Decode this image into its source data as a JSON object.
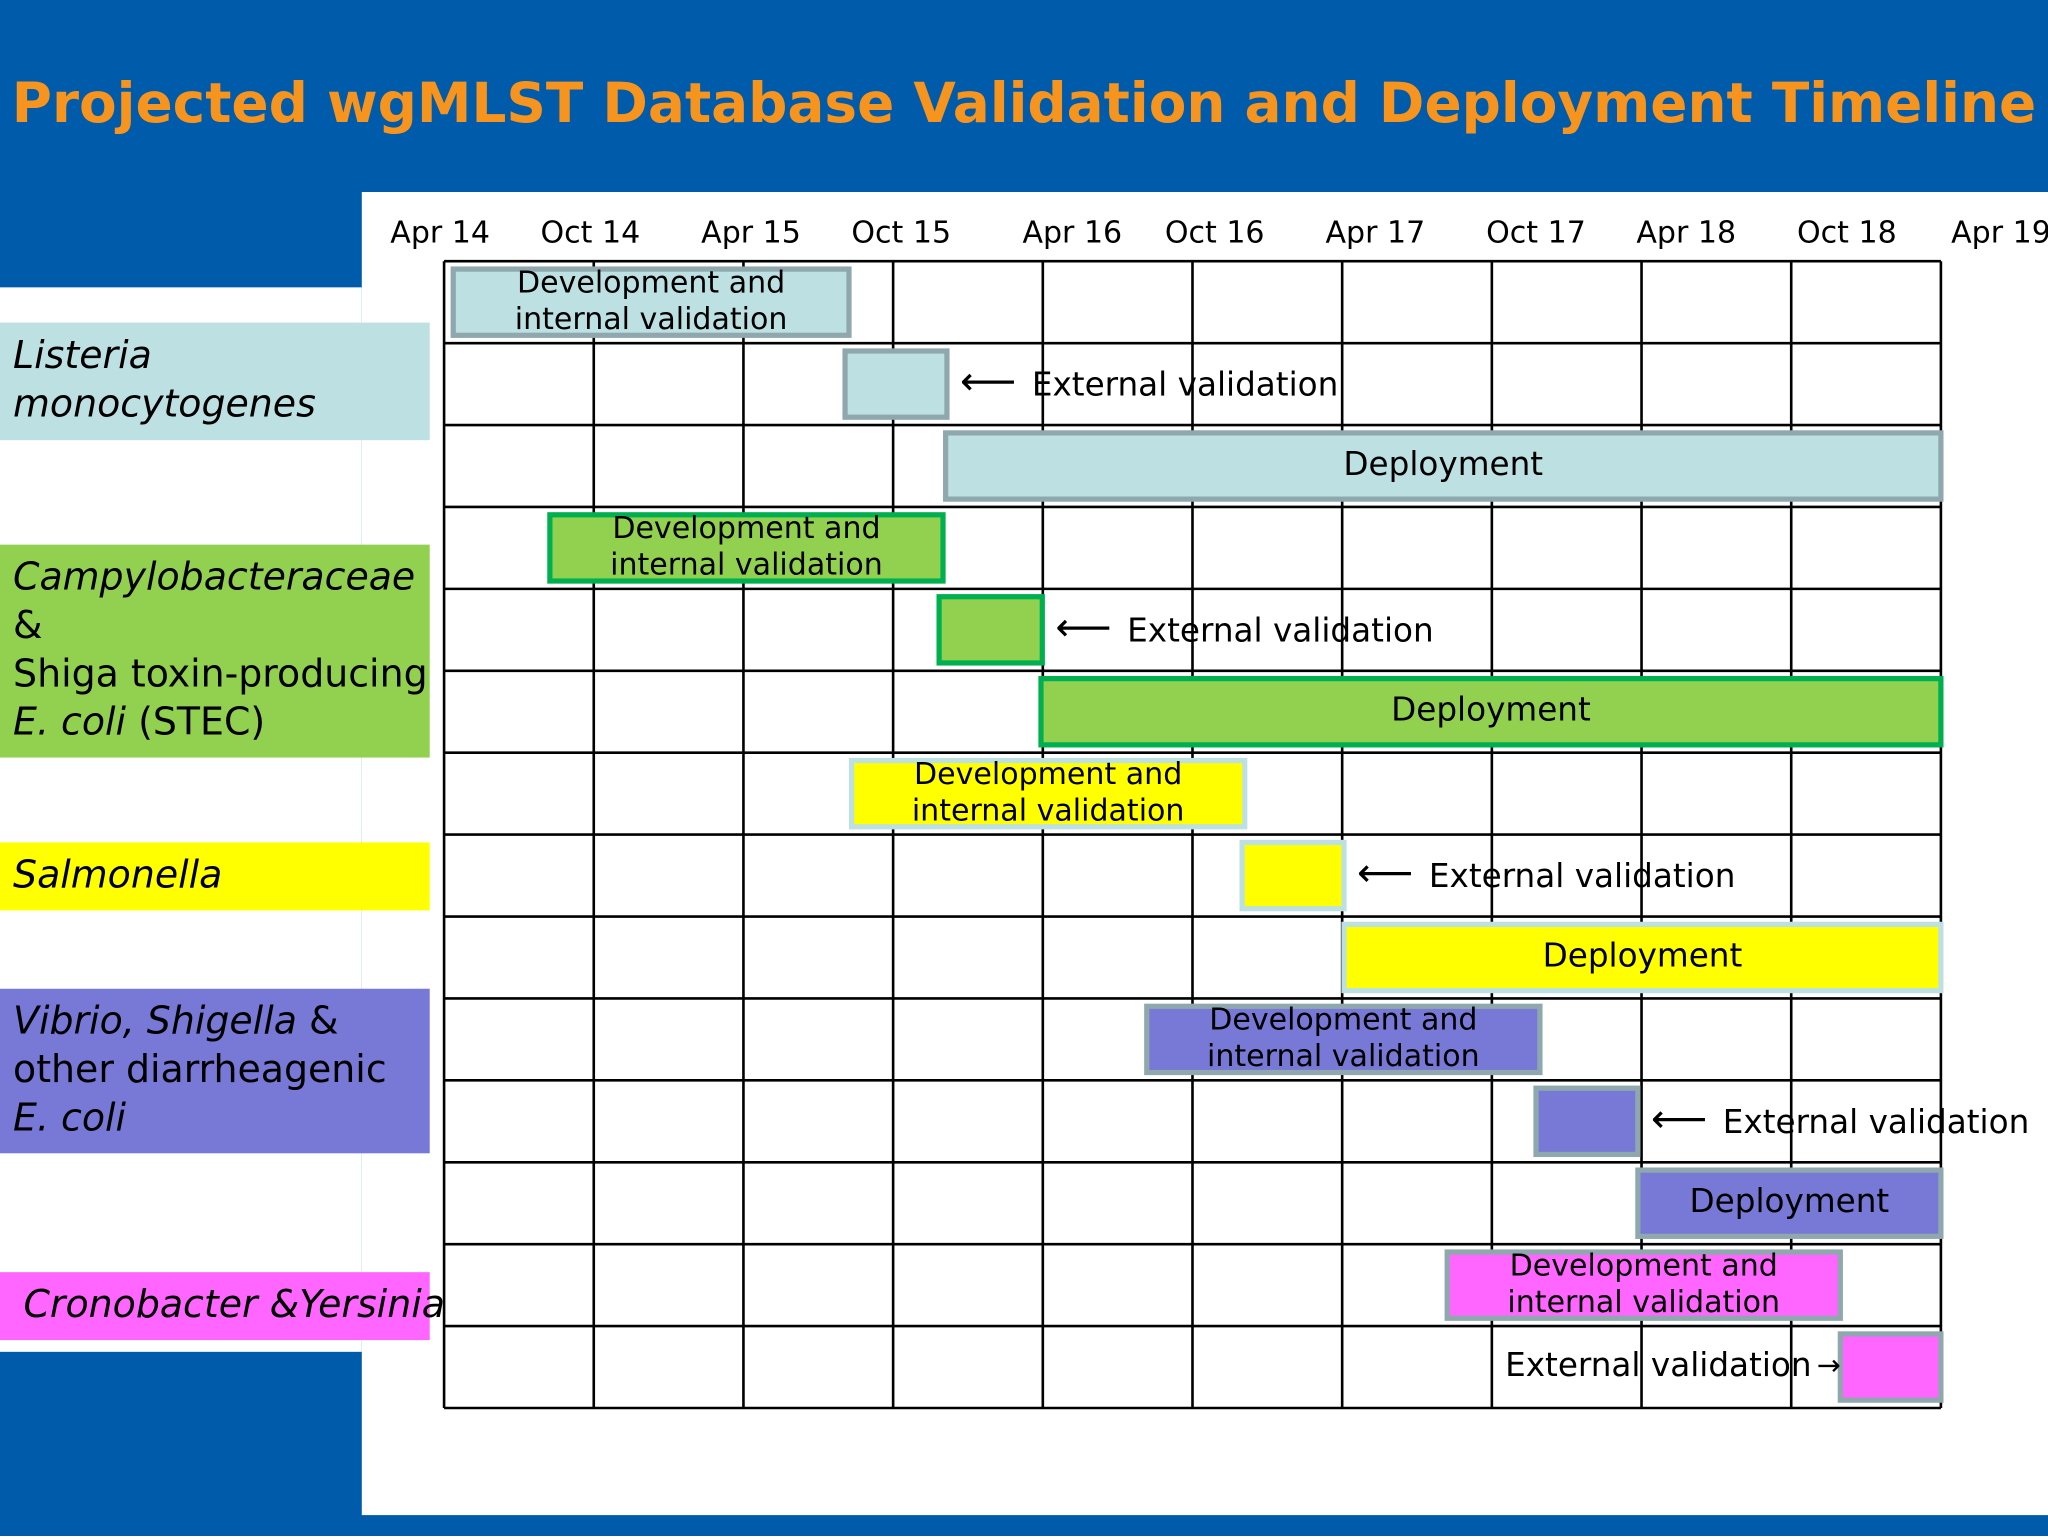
{
  "title": "Projected wgMLST Database Validation and Deployment Timeline",
  "timeline": {
    "columns": [
      "Apr 14",
      "Oct 14",
      "Apr 15",
      "Oct 15",
      "Apr 16",
      "Oct 16",
      "Apr 17",
      "Oct 17",
      "Apr 18",
      "Oct 18",
      "Apr 19"
    ],
    "groups": [
      {
        "label_lines": [
          [
            {
              "text": "Listeria",
              "italic": true
            }
          ],
          [
            {
              "text": "monocytogenes",
              "italic": true
            }
          ]
        ],
        "color": "#bde0e3",
        "bars": {
          "development": [
            "Development and",
            "internal validation"
          ],
          "external": "External validation",
          "deployment": "Deployment"
        }
      },
      {
        "label_lines": [
          [
            {
              "text": "Campylobacteraceae",
              "italic": true
            }
          ],
          [
            {
              "text": "&",
              "italic": false
            }
          ],
          [
            {
              "text": "Shiga toxin-producing",
              "italic": false
            }
          ],
          [
            {
              "text": "E. coli",
              "italic": true
            },
            {
              "text": " (STEC)",
              "italic": false
            }
          ]
        ],
        "color": "#92d050",
        "bars": {
          "development": [
            "Development and",
            "internal validation"
          ],
          "external": "External validation",
          "deployment": "Deployment"
        }
      },
      {
        "label_lines": [
          [
            {
              "text": "Salmonella",
              "italic": true
            }
          ]
        ],
        "color": "#ffff00",
        "bars": {
          "development": [
            "Development and",
            "internal validation"
          ],
          "external": "External validation",
          "deployment": "Deployment"
        }
      },
      {
        "label_lines": [
          [
            {
              "text": "Vibrio, Shigella",
              "italic": true
            },
            {
              "text": " &",
              "italic": false
            }
          ],
          [
            {
              "text": "other diarrheagenic",
              "italic": false
            }
          ],
          [
            {
              "text": "E. coli",
              "italic": true
            }
          ]
        ],
        "color": "#7878d6",
        "bars": {
          "development": [
            "Development and",
            "internal validation"
          ],
          "external": "External validation",
          "deployment": "Deployment"
        }
      },
      {
        "label_lines": [
          [
            {
              "text": "Cronobacter &Yersinia",
              "italic": true
            }
          ]
        ],
        "color": "#ff66ff",
        "bars": {
          "development": [
            "Development and",
            "internal validation"
          ],
          "external": "External validation"
        }
      }
    ]
  }
}
